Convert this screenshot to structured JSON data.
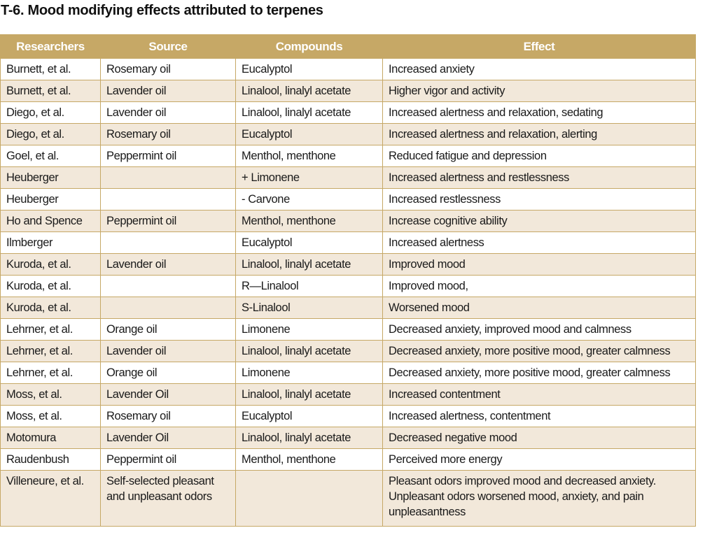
{
  "title": "T-6. Mood modifying effects attributed to terpenes",
  "table": {
    "headers": [
      "Researchers",
      "Source",
      "Compounds",
      "Effect"
    ],
    "rows": [
      {
        "researchers": "Burnett, et al.",
        "source": "Rosemary oil",
        "compounds": "Eucalyptol",
        "effect": "Increased anxiety"
      },
      {
        "researchers": "Burnett, et al.",
        "source": "Lavender oil",
        "compounds": "Linalool, linalyl acetate",
        "effect": "Higher vigor and activity"
      },
      {
        "researchers": "Diego, et al.",
        "source": "Lavender oil",
        "compounds": "Linalool, linalyl acetate",
        "effect": "Increased alertness and relaxation, sedating"
      },
      {
        "researchers": "Diego, et al.",
        "source": "Rosemary oil",
        "compounds": "Eucalyptol",
        "effect": "Increased alertness and relaxation, alerting"
      },
      {
        "researchers": "Goel, et al.",
        "source": "Peppermint oil",
        "compounds": "Menthol, menthone",
        "effect": "Reduced fatigue and depression"
      },
      {
        "researchers": "Heuberger",
        "source": "",
        "compounds": "+ Limonene",
        "effect": "Increased alertness and restlessness"
      },
      {
        "researchers": "Heuberger",
        "source": "",
        "compounds": "- Carvone",
        "effect": "Increased restlessness"
      },
      {
        "researchers": "Ho and Spence",
        "source": "Peppermint oil",
        "compounds": "Menthol, menthone",
        "effect": "Increase cognitive ability"
      },
      {
        "researchers": "Ilmberger",
        "source": "",
        "compounds": "Eucalyptol",
        "effect": "Increased alertness"
      },
      {
        "researchers": "Kuroda, et al.",
        "source": "Lavender oil",
        "compounds": "Linalool, linalyl acetate",
        "effect": "Improved mood"
      },
      {
        "researchers": "Kuroda, et al.",
        "source": "",
        "compounds": "R—Linalool",
        "effect": "Improved mood,"
      },
      {
        "researchers": "Kuroda, et al.",
        "source": "",
        "compounds": "S-Linalool",
        "effect": "Worsened mood"
      },
      {
        "researchers": "Lehrner, et al.",
        "source": "Orange oil",
        "compounds": "Limonene",
        "effect": "Decreased anxiety, improved mood and calmness"
      },
      {
        "researchers": "Lehrner, et al.",
        "source": "Lavender oil",
        "compounds": "Linalool, linalyl acetate",
        "effect": "Decreased anxiety, more positive mood, greater calmness"
      },
      {
        "researchers": "Lehrner, et al.",
        "source": "Orange oil",
        "compounds": "Limonene",
        "effect": "Decreased anxiety, more positive mood, greater calmness"
      },
      {
        "researchers": "Moss, et al.",
        "source": "Lavender Oil",
        "compounds": "Linalool, linalyl acetate",
        "effect": "Increased contentment"
      },
      {
        "researchers": "Moss, et al.",
        "source": "Rosemary oil",
        "compounds": "Eucalyptol",
        "effect": "Increased alertness, contentment"
      },
      {
        "researchers": "Motomura",
        "source": "Lavender Oil",
        "compounds": "Linalool, linalyl acetate",
        "effect": "Decreased negative mood"
      },
      {
        "researchers": "Raudenbush",
        "source": "Peppermint oil",
        "compounds": "Menthol, menthone",
        "effect": "Perceived more energy"
      },
      {
        "researchers": "Villeneure, et al.",
        "source": "Self-selected pleasant\nand unpleasant odors",
        "compounds": "",
        "effect": "Pleasant odors improved mood and decreased anxiety.\nUnpleasant odors worsened mood, anxiety, and pain\nunpleasantness"
      }
    ]
  },
  "colors": {
    "header_background": "#c6a866",
    "header_text": "#ffffff",
    "band_background": "#f2e8da",
    "grid_line": "#c6a866"
  }
}
